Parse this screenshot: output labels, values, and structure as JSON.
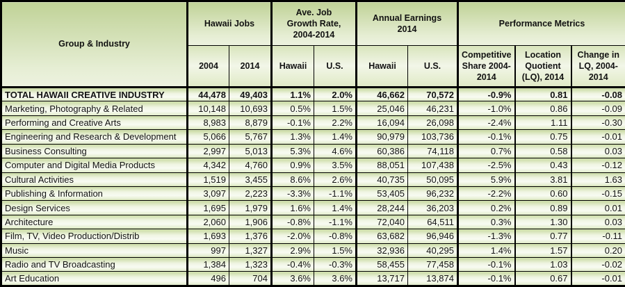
{
  "chart_data": {
    "type": "table",
    "header": {
      "corner": "Group & Industry",
      "groups": [
        {
          "label": "Hawaii Jobs",
          "children": [
            "2004",
            "2014"
          ]
        },
        {
          "label": "Ave. Job Growth Rate, 2004-2014",
          "children": [
            "Hawaii",
            "U.S."
          ]
        },
        {
          "label": "Annual Earnings 2014",
          "children": [
            "Hawaii",
            "U.S."
          ]
        },
        {
          "label": "Performance Metrics",
          "children": [
            "Competitive Share 2004-2014",
            "Location Quotient (LQ), 2014",
            "Change in LQ, 2004-2014"
          ]
        }
      ]
    },
    "rows": [
      {
        "name": "TOTAL HAWAII CREATIVE INDUSTRY",
        "bold": true,
        "values": [
          "44,478",
          "49,403",
          "1.1%",
          "2.0%",
          "46,662",
          "70,572",
          "-0.9%",
          "0.81",
          "-0.08"
        ]
      },
      {
        "name": "Marketing, Photography & Related",
        "bold": false,
        "values": [
          "10,148",
          "10,693",
          "0.5%",
          "1.5%",
          "25,046",
          "46,231",
          "-1.0%",
          "0.86",
          "-0.09"
        ]
      },
      {
        "name": "Performing and Creative Arts",
        "bold": false,
        "values": [
          "8,983",
          "8,879",
          "-0.1%",
          "2.2%",
          "16,094",
          "26,098",
          "-2.4%",
          "1.11",
          "-0.30"
        ]
      },
      {
        "name": "Engineering and Research & Development",
        "bold": false,
        "values": [
          "5,066",
          "5,767",
          "1.3%",
          "1.4%",
          "90,979",
          "103,736",
          "-0.1%",
          "0.75",
          "-0.01"
        ]
      },
      {
        "name": "Business Consulting",
        "bold": false,
        "values": [
          "2,997",
          "5,013",
          "5.3%",
          "4.6%",
          "60,386",
          "74,118",
          "0.7%",
          "0.58",
          "0.03"
        ]
      },
      {
        "name": "Computer and Digital Media Products",
        "bold": false,
        "values": [
          "4,342",
          "4,760",
          "0.9%",
          "3.5%",
          "88,051",
          "107,438",
          "-2.5%",
          "0.43",
          "-0.12"
        ]
      },
      {
        "name": "Cultural Activities",
        "bold": false,
        "values": [
          "1,519",
          "3,455",
          "8.6%",
          "2.6%",
          "40,735",
          "50,095",
          "5.9%",
          "3.81",
          "1.63"
        ]
      },
      {
        "name": "Publishing & Information",
        "bold": false,
        "values": [
          "3,097",
          "2,223",
          "-3.3%",
          "-1.1%",
          "53,405",
          "96,232",
          "-2.2%",
          "0.60",
          "-0.15"
        ]
      },
      {
        "name": "Design Services",
        "bold": false,
        "values": [
          "1,695",
          "1,979",
          "1.6%",
          "1.4%",
          "28,244",
          "36,203",
          "0.2%",
          "0.89",
          "0.01"
        ]
      },
      {
        "name": "Architecture",
        "bold": false,
        "values": [
          "2,060",
          "1,906",
          "-0.8%",
          "-1.1%",
          "72,040",
          "64,511",
          "0.3%",
          "1.30",
          "0.03"
        ]
      },
      {
        "name": "Film, TV, Video Production/Distrib",
        "bold": false,
        "values": [
          "1,693",
          "1,376",
          "-2.0%",
          "-0.8%",
          "63,682",
          "96,946",
          "-1.3%",
          "0.77",
          "-0.11"
        ]
      },
      {
        "name": "Music",
        "bold": false,
        "values": [
          "997",
          "1,327",
          "2.9%",
          "1.5%",
          "32,936",
          "40,295",
          "1.4%",
          "1.57",
          "0.20"
        ]
      },
      {
        "name": "Radio and TV Broadcasting",
        "bold": false,
        "values": [
          "1,384",
          "1,323",
          "-0.4%",
          "-0.3%",
          "58,455",
          "77,458",
          "-0.1%",
          "1.03",
          "-0.02"
        ]
      },
      {
        "name": "Art Education",
        "bold": false,
        "values": [
          "496",
          "704",
          "3.6%",
          "3.6%",
          "13,717",
          "13,874",
          "-0.1%",
          "0.67",
          "-0.01"
        ]
      }
    ]
  },
  "colors": {
    "border": "#000000",
    "text": "#121212",
    "header_gradient_top": "#c0d297",
    "header_gradient_bottom": "#edf2e0",
    "row_gradient_top": "#c9daa2",
    "row_gradient_mid": "#f8fbf2",
    "row_gradient_bottom": "#e0ebc8"
  }
}
